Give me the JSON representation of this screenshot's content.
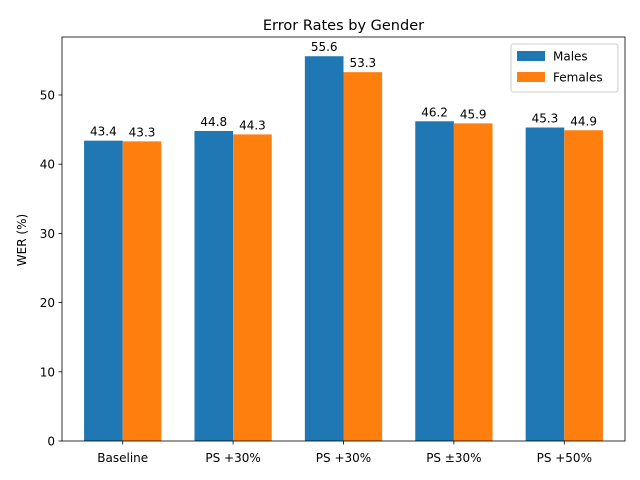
{
  "chart_data": {
    "type": "bar",
    "title": "Error Rates by Gender",
    "xlabel": "",
    "ylabel": "WER (%)",
    "categories": [
      "Baseline",
      "PS +30%",
      "PS +30%",
      "PS ±30%",
      "PS +50%"
    ],
    "series": [
      {
        "name": "Males",
        "values": [
          43.4,
          44.8,
          55.6,
          46.2,
          45.3
        ],
        "color": "#1f77b4"
      },
      {
        "name": "Females",
        "values": [
          43.3,
          44.3,
          53.3,
          45.9,
          44.9
        ],
        "color": "#ff7f0e"
      }
    ],
    "ylim": [
      0,
      58.38
    ],
    "yticks": [
      0,
      10,
      20,
      30,
      40,
      50
    ],
    "grid": false,
    "legend_position": "top-right"
  }
}
